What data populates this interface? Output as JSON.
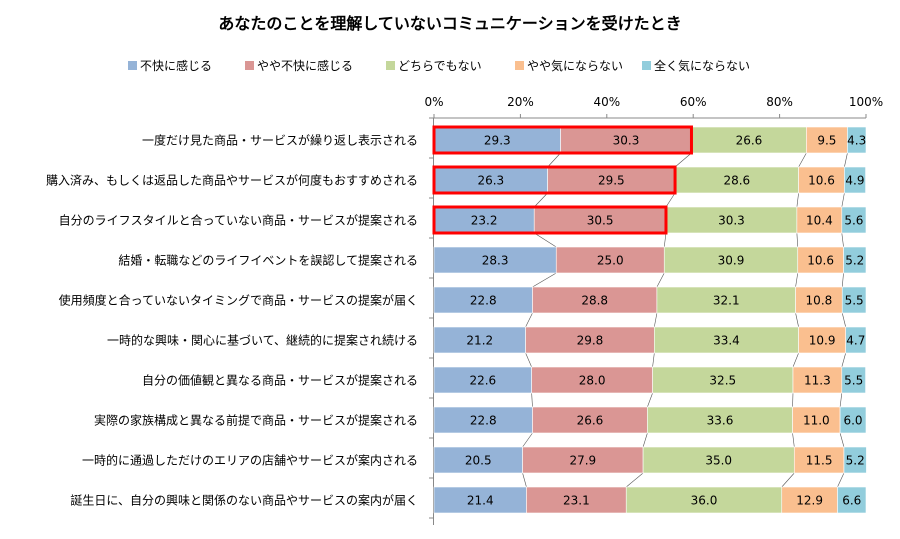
{
  "chart_data": {
    "type": "bar",
    "orientation": "horizontal",
    "stacked": true,
    "title": "あなたのことを理解していないコミュニケーションを受けたとき",
    "xlabel": "",
    "ylabel": "",
    "xlim": [
      0,
      100
    ],
    "x_ticks": [
      "0%",
      "20%",
      "40%",
      "60%",
      "80%",
      "100%"
    ],
    "legend_position": "top",
    "grid": false,
    "series_connector_lines": true,
    "categories": [
      "一度だけ見た商品・サービスが繰り返し表示される",
      "購入済み、もしくは返品した商品やサービスが何度もおすすめされる",
      "自分のライフスタイルと合っていない商品・サービスが提案される",
      "結婚・転職などのライフイベントを誤認して提案される",
      "使用頻度と合っていないタイミングで商品・サービスの提案が届く",
      "一時的な興味・関心に基づいて、継続的に提案され続ける",
      "自分の価値観と異なる商品・サービスが提案される",
      "実際の家族構成と異なる前提で商品・サービスが提案される",
      "一時的に通過しただけのエリアの店舗やサービスが案内される",
      "誕生日に、自分の興味と関係のない商品やサービスの案内が届く"
    ],
    "series": [
      {
        "name": "不快に感じる",
        "color": "#95b3d7",
        "values": [
          29.3,
          26.3,
          23.2,
          28.3,
          22.8,
          21.2,
          22.6,
          22.8,
          20.5,
          21.4
        ]
      },
      {
        "name": "やや不快に感じる",
        "color": "#da9694",
        "values": [
          30.3,
          29.5,
          30.5,
          25.0,
          28.8,
          29.8,
          28.0,
          26.6,
          27.9,
          23.1
        ]
      },
      {
        "name": "どちらでもない",
        "color": "#c4d79b",
        "values": [
          26.6,
          28.6,
          30.3,
          30.9,
          32.1,
          33.4,
          32.5,
          33.6,
          35.0,
          36.0
        ]
      },
      {
        "name": "やや気にならない",
        "color": "#fabf8f",
        "values": [
          9.5,
          10.6,
          10.4,
          10.6,
          10.8,
          10.9,
          11.3,
          11.0,
          11.5,
          12.9
        ]
      },
      {
        "name": "全く気にならない",
        "color": "#92cddc",
        "values": [
          4.3,
          4.9,
          5.6,
          5.2,
          5.5,
          4.7,
          5.5,
          6.0,
          5.2,
          6.6
        ]
      }
    ],
    "highlights": [
      {
        "category_index": 0,
        "series": [
          0,
          1
        ],
        "color": "#ff0000"
      },
      {
        "category_index": 1,
        "series": [
          0,
          1
        ],
        "color": "#ff0000"
      },
      {
        "category_index": 2,
        "series": [
          0,
          1
        ],
        "color": "#ff0000"
      }
    ]
  }
}
